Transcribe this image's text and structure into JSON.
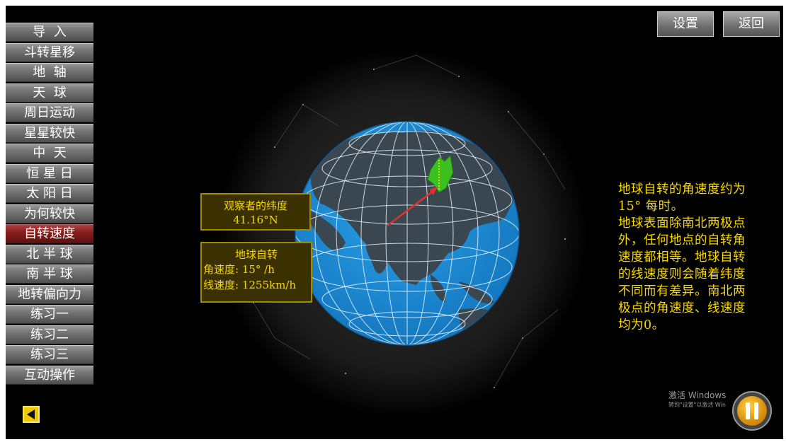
{
  "menu": {
    "items": [
      {
        "label": "导  入"
      },
      {
        "label": "斗转星移"
      },
      {
        "label": "地  轴"
      },
      {
        "label": "天  球"
      },
      {
        "label": "周日运动"
      },
      {
        "label": "星星较快"
      },
      {
        "label": "中  天"
      },
      {
        "label": "恒 星 日"
      },
      {
        "label": "太 阳 日"
      },
      {
        "label": "为何较快"
      },
      {
        "label": "自转速度",
        "active": true
      },
      {
        "label": "北 半 球"
      },
      {
        "label": "南 半 球"
      },
      {
        "label": "地转偏向力"
      },
      {
        "label": "练习一"
      },
      {
        "label": "练习二"
      },
      {
        "label": "练习三"
      },
      {
        "label": "互动操作"
      }
    ]
  },
  "toolbar": {
    "settings_label": "设置",
    "return_label": "返回"
  },
  "latitude_box": {
    "title": "观察者的纬度",
    "value": "41.16°N"
  },
  "rotation_box": {
    "title": "地球自转",
    "angular_speed": "角速度: 15° /h",
    "linear_speed": "线速度: 1255km/h"
  },
  "explanation": {
    "lines": [
      "地球自转的角速度约为",
      "15° 每时。",
      "地球表面除南北两极点",
      "外，任何地点的自转角",
      "速度都相等。地球自转",
      "的线速度则会随着纬度",
      "不同而有差异。南北两",
      "极点的角速度、线速度",
      "均为0。"
    ]
  },
  "watermark": {
    "line1": "激活 Windows",
    "line2": "转到\"设置\"以激活 Win"
  },
  "colors": {
    "ocean": "#1a8ad4",
    "land": "#3a4650",
    "highlight_text": "#f7d800",
    "active_menu": "#8a2020",
    "arrow": "#e23030",
    "observer_marker": "#3cc020"
  },
  "icons": {
    "back": "left-triangle-icon",
    "pause": "pause-icon"
  }
}
